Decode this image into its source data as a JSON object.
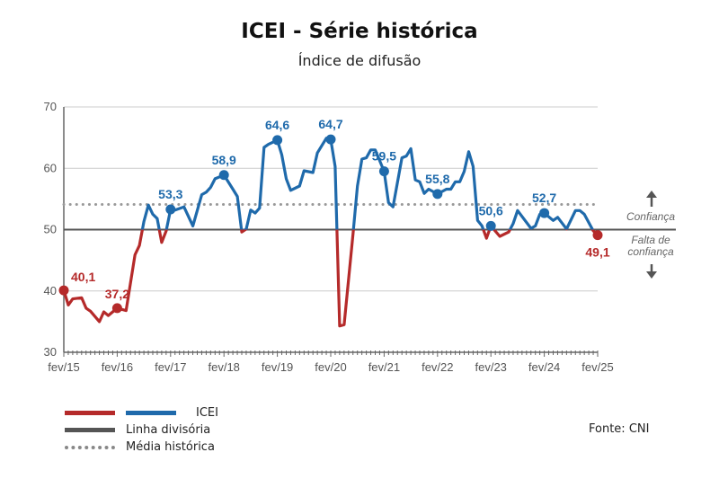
{
  "chart_data": {
    "type": "line",
    "title": "ICEI - Série histórica",
    "subtitle": "Índice de difusão",
    "ylim": [
      30,
      70
    ],
    "yticks": [
      30,
      40,
      50,
      60,
      70
    ],
    "xlim": [
      "2015-02",
      "2025-02"
    ],
    "xtick_labels": [
      "fev/15",
      "fev/16",
      "fev/17",
      "fev/18",
      "fev/19",
      "fev/20",
      "fev/21",
      "fev/22",
      "fev/23",
      "fev/24",
      "fev/25"
    ],
    "grid": true,
    "dividing_line": 50,
    "historical_average": 54.1,
    "colors": {
      "above": "#1f6aab",
      "below": "#b52a2a",
      "divider": "#555555",
      "average": "#999999",
      "grid": "#cccccc"
    },
    "series": [
      {
        "name": "ICEI",
        "points": [
          [
            "2015-02",
            40.1
          ],
          [
            "2015-03",
            37.7
          ],
          [
            "2015-04",
            38.7
          ],
          [
            "2015-06",
            38.9
          ],
          [
            "2015-07",
            37.2
          ],
          [
            "2015-08",
            36.7
          ],
          [
            "2015-10",
            35.0
          ],
          [
            "2015-11",
            36.6
          ],
          [
            "2015-12",
            36.0
          ],
          [
            "2016-02",
            37.2
          ],
          [
            "2016-04",
            36.8
          ],
          [
            "2016-06",
            45.9
          ],
          [
            "2016-07",
            47.4
          ],
          [
            "2016-08",
            51.3
          ],
          [
            "2016-09",
            54.0
          ],
          [
            "2016-10",
            52.5
          ],
          [
            "2016-11",
            51.8
          ],
          [
            "2016-12",
            47.9
          ],
          [
            "2017-01",
            49.8
          ],
          [
            "2017-02",
            53.3
          ],
          [
            "2017-03",
            53.2
          ],
          [
            "2017-05",
            53.7
          ],
          [
            "2017-07",
            50.6
          ],
          [
            "2017-09",
            55.7
          ],
          [
            "2017-10",
            56.1
          ],
          [
            "2017-11",
            56.9
          ],
          [
            "2017-12",
            58.3
          ],
          [
            "2018-02",
            58.9
          ],
          [
            "2018-04",
            56.6
          ],
          [
            "2018-05",
            55.4
          ],
          [
            "2018-06",
            49.6
          ],
          [
            "2018-07",
            50.1
          ],
          [
            "2018-08",
            53.2
          ],
          [
            "2018-09",
            52.7
          ],
          [
            "2018-10",
            53.5
          ],
          [
            "2018-11",
            63.4
          ],
          [
            "2018-12",
            63.9
          ],
          [
            "2019-02",
            64.6
          ],
          [
            "2019-03",
            62.2
          ],
          [
            "2019-04",
            58.3
          ],
          [
            "2019-05",
            56.4
          ],
          [
            "2019-07",
            57.1
          ],
          [
            "2019-08",
            59.6
          ],
          [
            "2019-10",
            59.3
          ],
          [
            "2019-11",
            62.5
          ],
          [
            "2020-01",
            64.9
          ],
          [
            "2020-02",
            64.7
          ],
          [
            "2020-03",
            60.3
          ],
          [
            "2020-04",
            34.3
          ],
          [
            "2020-05",
            34.5
          ],
          [
            "2020-07",
            49.3
          ],
          [
            "2020-08",
            57.1
          ],
          [
            "2020-09",
            61.5
          ],
          [
            "2020-10",
            61.7
          ],
          [
            "2020-11",
            63.0
          ],
          [
            "2020-12",
            63.0
          ],
          [
            "2021-02",
            59.5
          ],
          [
            "2021-03",
            54.4
          ],
          [
            "2021-04",
            53.7
          ],
          [
            "2021-06",
            61.7
          ],
          [
            "2021-07",
            62.0
          ],
          [
            "2021-08",
            63.2
          ],
          [
            "2021-09",
            58.1
          ],
          [
            "2021-10",
            57.8
          ],
          [
            "2021-11",
            55.9
          ],
          [
            "2021-12",
            56.6
          ],
          [
            "2022-02",
            55.8
          ],
          [
            "2022-04",
            56.6
          ],
          [
            "2022-05",
            56.6
          ],
          [
            "2022-06",
            57.8
          ],
          [
            "2022-07",
            57.8
          ],
          [
            "2022-08",
            59.5
          ],
          [
            "2022-09",
            62.7
          ],
          [
            "2022-10",
            60.3
          ],
          [
            "2022-11",
            51.5
          ],
          [
            "2022-12",
            50.6
          ],
          [
            "2023-01",
            48.6
          ],
          [
            "2023-02",
            50.6
          ],
          [
            "2023-04",
            48.9
          ],
          [
            "2023-06",
            49.6
          ],
          [
            "2023-07",
            51.0
          ],
          [
            "2023-08",
            53.1
          ],
          [
            "2023-11",
            50.2
          ],
          [
            "2023-12",
            50.6
          ],
          [
            "2024-01",
            52.5
          ],
          [
            "2024-02",
            52.7
          ],
          [
            "2024-04",
            51.5
          ],
          [
            "2024-05",
            52.0
          ],
          [
            "2024-07",
            50.1
          ],
          [
            "2024-09",
            53.1
          ],
          [
            "2024-10",
            53.1
          ],
          [
            "2024-11",
            52.5
          ],
          [
            "2025-01",
            49.8
          ],
          [
            "2025-02",
            49.1
          ]
        ]
      }
    ],
    "annotations": [
      {
        "date": "2015-02",
        "value": 40.1,
        "label": "40,1"
      },
      {
        "date": "2016-02",
        "value": 37.2,
        "label": "37,2"
      },
      {
        "date": "2017-02",
        "value": 53.3,
        "label": "53,3"
      },
      {
        "date": "2018-02",
        "value": 58.9,
        "label": "58,9"
      },
      {
        "date": "2019-02",
        "value": 64.6,
        "label": "64,6"
      },
      {
        "date": "2020-02",
        "value": 64.7,
        "label": "64,7"
      },
      {
        "date": "2021-02",
        "value": 59.5,
        "label": "59,5"
      },
      {
        "date": "2022-02",
        "value": 55.8,
        "label": "55,8"
      },
      {
        "date": "2023-02",
        "value": 50.6,
        "label": "50,6"
      },
      {
        "date": "2024-02",
        "value": 52.7,
        "label": "52,7"
      },
      {
        "date": "2025-02",
        "value": 49.1,
        "label": "49,1"
      }
    ],
    "zone_labels": {
      "above": "Confiança",
      "below_1": "Falta de",
      "below_2": "confiança"
    },
    "icons": {
      "up": "arrow-up-icon",
      "down": "arrow-down-icon"
    }
  },
  "legend": {
    "icei": "ICEI",
    "divider": "Linha divisória",
    "average": "Média histórica"
  },
  "source": "Fonte: CNI"
}
